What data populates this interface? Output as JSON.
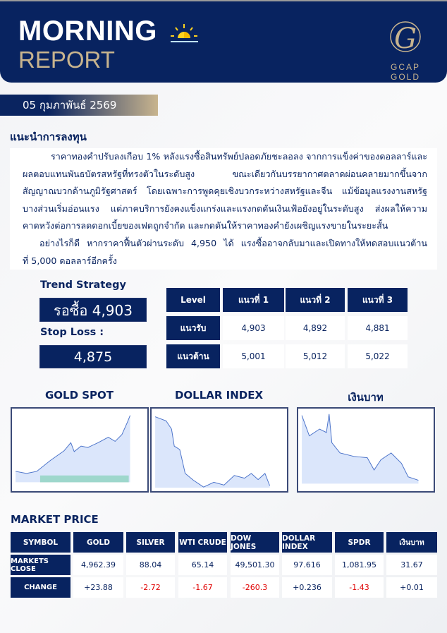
{
  "header": {
    "title_line1": "MORNING",
    "title_line2": "REPORT",
    "brand": "GCAP GOLD"
  },
  "date": "05 กุมภาพันธ์ 2569",
  "advice": {
    "title": "แนะนำการลงทุน",
    "lines": [
      "ราคาทองคำปรับลงเกือบ 1% หลังแรงซื้อสินทรัพย์ปลอดภัยชะลอลง จากการแข็งค่าของดอลลาร์และ",
      "ผลตอบแทนพันธบัตรสหรัฐที่ทรงตัวในระดับสูง ขณะเดียวกันบรรยากาศตลาดผ่อนคลายมากขึ้นจาก",
      "สัญญาณบวกด้านภูมิรัฐศาสตร์ โดยเฉพาะการพูดคุยเชิงบวกระหว่างสหรัฐและจีน แม้ข้อมูลแรงงานสหรัฐ",
      "บางส่วนเริ่มอ่อนแรง แต่ภาคบริการยังคงแข็งแกร่งและแรงกดดันเงินเฟ้อยังอยู่ในระดับสูง ส่งผลให้ความ",
      "คาดหวังต่อการลดดอกเบี้ยของเฟดถูกจำกัด และกดดันให้ราคาทองคำยังเผชิญแรงขายในระยะสั้น",
      "อย่างไรก็ดี หากราคาฟื้นตัวผ่านระดับ 4,950 ได้ แรงซื้ออาจกลับมาและเปิดทางให้ทดสอบแนวต้านสำคัญ",
      "ที่ 5,000 ดอลลาร์อีกครั้ง"
    ]
  },
  "strategy": {
    "trend_label": "Trend Strategy",
    "trend_value": "รอซื้อ 4,903",
    "stop_label": "Stop Loss :",
    "stop_value": "4,875"
  },
  "levels": {
    "headers": [
      "Level",
      "แนวที่ 1",
      "แนวที่ 2",
      "แนวที่ 3"
    ],
    "rows": [
      {
        "label": "แนวรับ",
        "values": [
          "4,903",
          "4,892",
          "4,881"
        ]
      },
      {
        "label": "แนวต้าน",
        "values": [
          "5,001",
          "5,012",
          "5,022"
        ]
      }
    ]
  },
  "charts": [
    {
      "title": "GOLD SPOT"
    },
    {
      "title": "DOLLAR INDEX"
    },
    {
      "title": "เงินบาท"
    }
  ],
  "market": {
    "title": "MARKET PRICE",
    "headers": [
      "SYMBOL",
      "GOLD",
      "SILVER",
      "WTI CRUDE",
      "DOW JONES",
      "DOLLAR INDEX",
      "SPDR",
      "เงินบาท"
    ],
    "close": {
      "label": "MARKETS CLOSE",
      "values": [
        "4,962.39",
        "88.04",
        "65.14",
        "49,501.30",
        "97.616",
        "1,081.95",
        "31.67"
      ]
    },
    "change": {
      "label": "CHANGE",
      "values": [
        "+23.88",
        "-2.72",
        "-1.67",
        "-260.3",
        "+0.236",
        "-1.43",
        "+0.01"
      ]
    }
  },
  "colors": {
    "navy": "#082360",
    "gold": "#c8b48e",
    "negative": "#e00000"
  }
}
